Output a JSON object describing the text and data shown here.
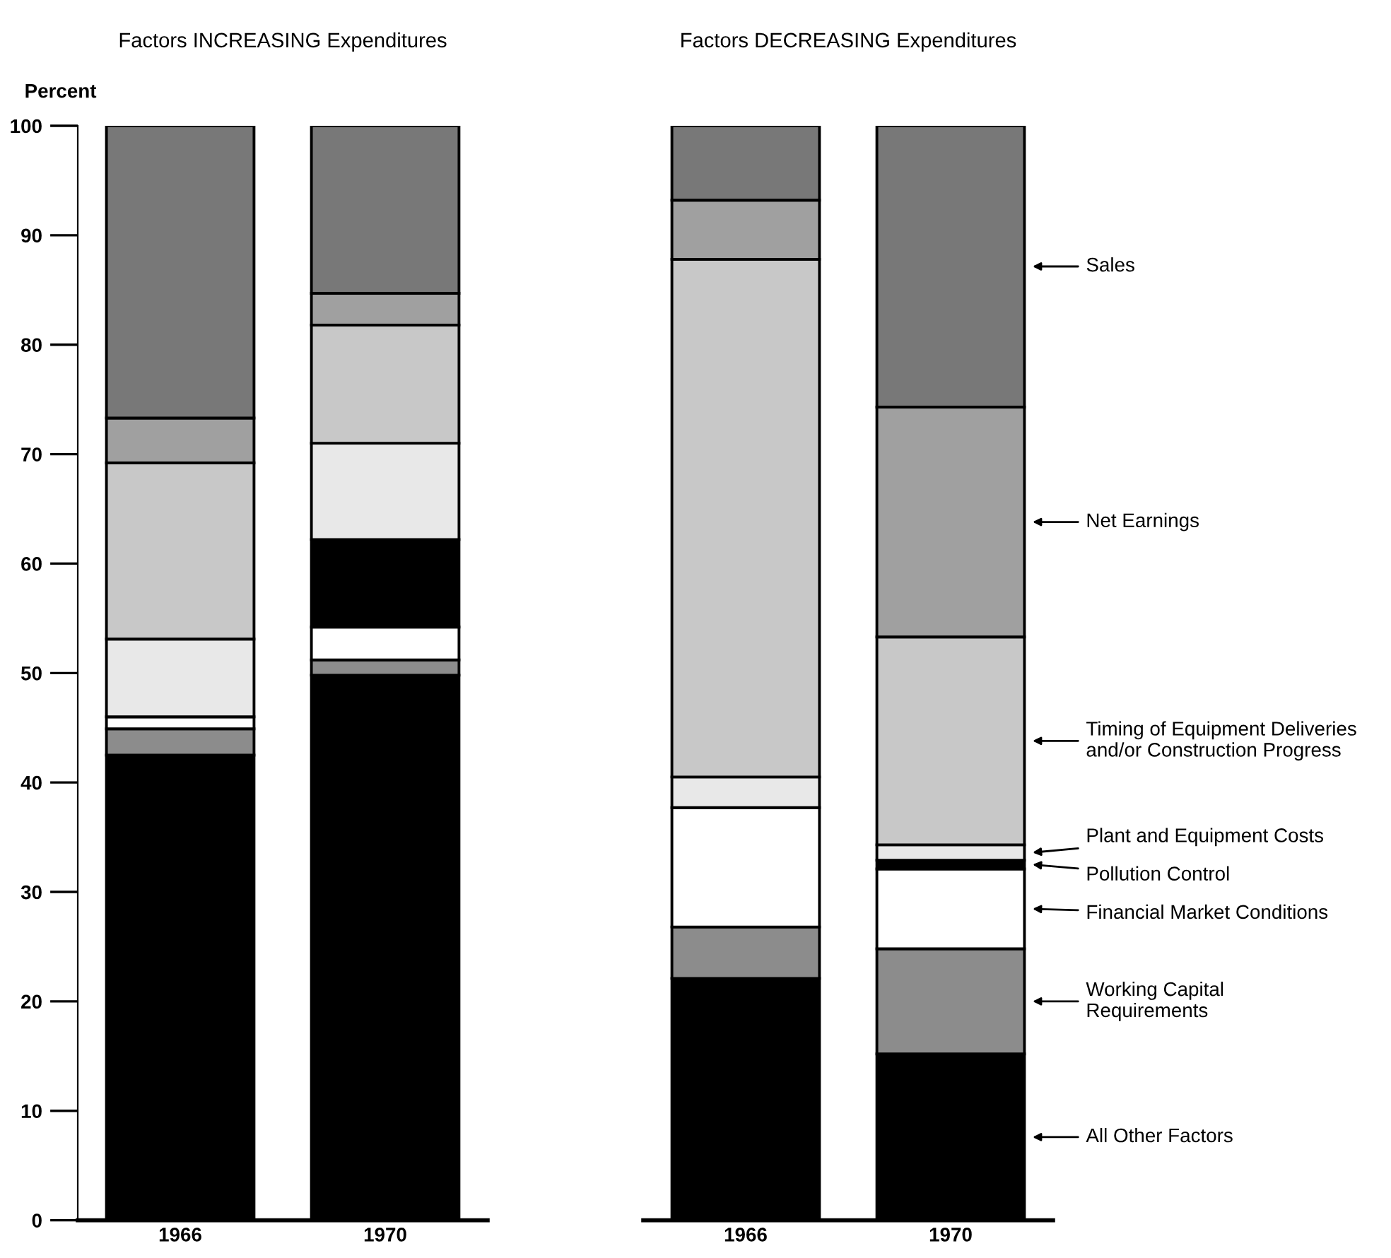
{
  "chart_data": [
    {
      "type": "bar",
      "title": "Factors INCREASING Expenditures",
      "ylabel": "Percent",
      "categories": [
        "1966",
        "1970"
      ],
      "stacked": true,
      "ylim": [
        0,
        100
      ],
      "yticks": [
        0,
        10,
        20,
        30,
        40,
        50,
        60,
        70,
        80,
        90,
        100
      ],
      "grid": false,
      "legend": false,
      "series": [
        {
          "color": "#000000",
          "values": [
            42.5,
            49.8
          ]
        },
        {
          "color": "#8c8c8c",
          "values": [
            2.4,
            1.4
          ]
        },
        {
          "color": "#ffffff",
          "values": [
            1.1,
            3.0
          ]
        },
        {
          "color": "#000000",
          "values": [
            0,
            8.0
          ]
        },
        {
          "color": "#e8e8e8",
          "values": [
            7.1,
            8.8
          ]
        },
        {
          "color": "#c8c8c8",
          "values": [
            16.1,
            10.8
          ]
        },
        {
          "color": "#a0a0a0",
          "values": [
            4.1,
            2.9
          ]
        },
        {
          "color": "#787878",
          "values": [
            26.7,
            15.3
          ]
        }
      ]
    },
    {
      "type": "bar",
      "title": "Factors DECREASING Expenditures",
      "categories": [
        "1966",
        "1970"
      ],
      "stacked": true,
      "ylim": [
        0,
        100
      ],
      "tick_labels": "x",
      "grid": false,
      "legend": "right",
      "series": [
        {
          "name": "All Other Factors",
          "color": "#000000",
          "values": [
            22.1,
            15.2
          ]
        },
        {
          "name": "Working Capital\nRequirements",
          "color": "#8c8c8c",
          "values": [
            4.7,
            9.6
          ]
        },
        {
          "name": "Financial Market Conditions",
          "color": "#ffffff",
          "values": [
            10.9,
            7.3
          ]
        },
        {
          "name": "Pollution Control",
          "color": "#000000",
          "values": [
            0,
            0.8
          ]
        },
        {
          "name": "Plant and Equipment Costs",
          "color": "#e8e8e8",
          "values": [
            2.8,
            1.4
          ]
        },
        {
          "name": "Timing of Equipment Deliveries\nand/or Construction Progress",
          "color": "#c8c8c8",
          "values": [
            47.3,
            19.0
          ]
        },
        {
          "name": "Net Earnings",
          "color": "#a0a0a0",
          "values": [
            5.4,
            21.0
          ]
        },
        {
          "name": "Sales",
          "color": "#787878",
          "values": [
            6.8,
            25.7
          ]
        }
      ]
    }
  ]
}
